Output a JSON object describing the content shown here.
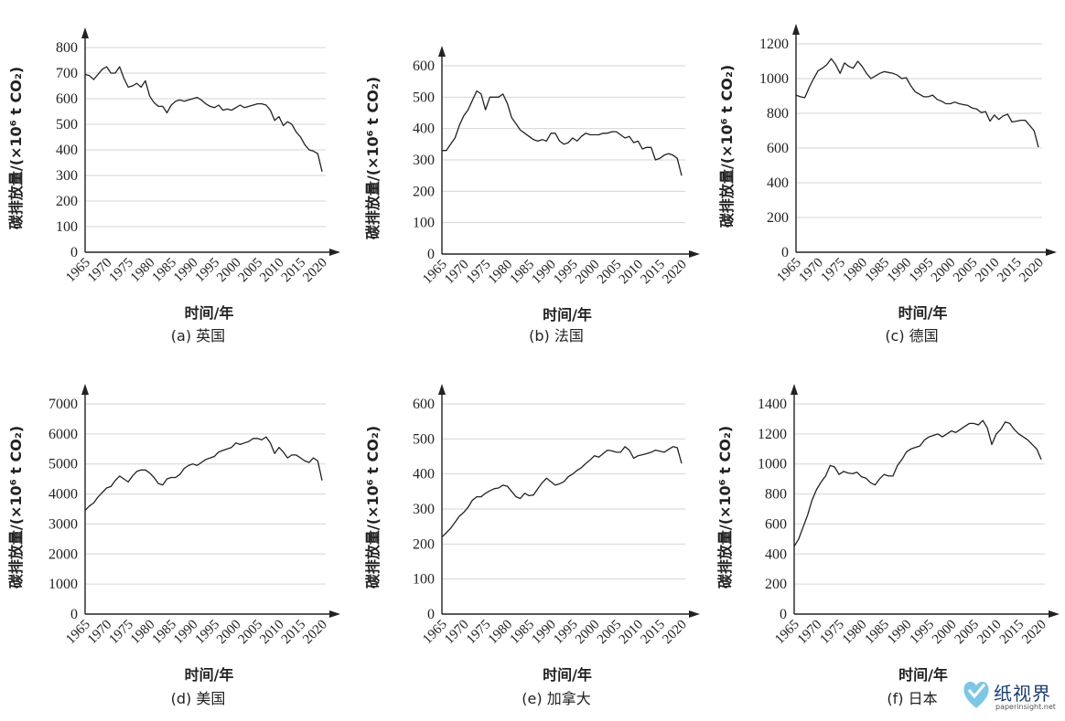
{
  "chart_data": [
    {
      "type": "line",
      "caption": "(a) 英国",
      "xlabel": "时间/年",
      "ylabel": "碳排放量/(×10⁶ t CO₂)",
      "ylim": [
        0,
        800
      ],
      "yticks": [
        0,
        100,
        200,
        300,
        400,
        500,
        600,
        700,
        800
      ],
      "xticks": [
        1965,
        1970,
        1975,
        1980,
        1985,
        1990,
        1995,
        2000,
        2005,
        2010,
        2015,
        2020
      ],
      "x": [
        1965,
        1966,
        1967,
        1968,
        1969,
        1970,
        1971,
        1972,
        1973,
        1974,
        1975,
        1976,
        1977,
        1978,
        1979,
        1980,
        1981,
        1982,
        1983,
        1984,
        1985,
        1986,
        1987,
        1988,
        1989,
        1990,
        1991,
        1992,
        1993,
        1994,
        1995,
        1996,
        1997,
        1998,
        1999,
        2000,
        2001,
        2002,
        2003,
        2004,
        2005,
        2006,
        2007,
        2008,
        2009,
        2010,
        2011,
        2012,
        2013,
        2014,
        2015,
        2016,
        2017,
        2018,
        2019,
        2020
      ],
      "values": [
        695,
        690,
        675,
        695,
        715,
        725,
        700,
        700,
        725,
        680,
        645,
        650,
        660,
        645,
        670,
        610,
        585,
        570,
        570,
        545,
        575,
        590,
        595,
        590,
        595,
        600,
        605,
        595,
        580,
        570,
        565,
        575,
        555,
        560,
        555,
        565,
        575,
        565,
        570,
        575,
        580,
        580,
        575,
        555,
        515,
        530,
        495,
        510,
        500,
        470,
        450,
        420,
        400,
        395,
        385,
        315
      ]
    },
    {
      "type": "line",
      "caption": "(b) 法国",
      "xlabel": "时间/年",
      "ylabel": "碳排放量/(×10⁶ t CO₂)",
      "ylim": [
        0,
        600
      ],
      "yticks": [
        0,
        100,
        200,
        300,
        400,
        500,
        600
      ],
      "xticks": [
        1965,
        1970,
        1975,
        1980,
        1985,
        1990,
        1995,
        2000,
        2005,
        2010,
        2015,
        2020
      ],
      "x": [
        1965,
        1966,
        1967,
        1968,
        1969,
        1970,
        1971,
        1972,
        1973,
        1974,
        1975,
        1976,
        1977,
        1978,
        1979,
        1980,
        1981,
        1982,
        1983,
        1984,
        1985,
        1986,
        1987,
        1988,
        1989,
        1990,
        1991,
        1992,
        1993,
        1994,
        1995,
        1996,
        1997,
        1998,
        1999,
        2000,
        2001,
        2002,
        2003,
        2004,
        2005,
        2006,
        2007,
        2008,
        2009,
        2010,
        2011,
        2012,
        2013,
        2014,
        2015,
        2016,
        2017,
        2018,
        2019,
        2020
      ],
      "values": [
        330,
        330,
        350,
        370,
        410,
        440,
        460,
        490,
        520,
        510,
        460,
        500,
        500,
        500,
        510,
        480,
        435,
        415,
        395,
        385,
        375,
        365,
        360,
        365,
        360,
        385,
        385,
        360,
        350,
        355,
        370,
        360,
        375,
        385,
        380,
        380,
        380,
        385,
        385,
        390,
        390,
        380,
        370,
        375,
        355,
        360,
        335,
        340,
        340,
        300,
        305,
        315,
        320,
        315,
        305,
        250
      ]
    },
    {
      "type": "line",
      "caption": "(c) 德国",
      "xlabel": "时间/年",
      "ylabel": "碳排放量/(×10⁶ t CO₂)",
      "ylim": [
        0,
        1200
      ],
      "yticks": [
        0,
        200,
        400,
        600,
        800,
        1000,
        1200
      ],
      "xticks": [
        1965,
        1970,
        1975,
        1980,
        1985,
        1990,
        1995,
        2000,
        2005,
        2010,
        2015,
        2020
      ],
      "x": [
        1965,
        1966,
        1967,
        1968,
        1969,
        1970,
        1971,
        1972,
        1973,
        1974,
        1975,
        1976,
        1977,
        1978,
        1979,
        1980,
        1981,
        1982,
        1983,
        1984,
        1985,
        1986,
        1987,
        1988,
        1989,
        1990,
        1991,
        1992,
        1993,
        1994,
        1995,
        1996,
        1997,
        1998,
        1999,
        2000,
        2001,
        2002,
        2003,
        2004,
        2005,
        2006,
        2007,
        2008,
        2009,
        2010,
        2011,
        2012,
        2013,
        2014,
        2015,
        2016,
        2017,
        2018,
        2019,
        2020
      ],
      "values": [
        905,
        895,
        890,
        950,
        1000,
        1045,
        1060,
        1080,
        1115,
        1080,
        1030,
        1090,
        1070,
        1060,
        1100,
        1070,
        1030,
        1000,
        1015,
        1030,
        1040,
        1035,
        1030,
        1020,
        1000,
        1005,
        960,
        925,
        910,
        895,
        895,
        905,
        880,
        870,
        855,
        855,
        865,
        855,
        850,
        845,
        830,
        825,
        805,
        810,
        755,
        790,
        765,
        785,
        795,
        750,
        755,
        760,
        760,
        730,
        700,
        605
      ]
    },
    {
      "type": "line",
      "caption": "(d) 美国",
      "xlabel": "时间/年",
      "ylabel": "碳排放量/(×10⁶ t CO₂)",
      "ylim": [
        0,
        7000
      ],
      "yticks": [
        0,
        1000,
        2000,
        3000,
        4000,
        5000,
        6000,
        7000
      ],
      "xticks": [
        1965,
        1970,
        1975,
        1980,
        1985,
        1990,
        1995,
        2000,
        2005,
        2010,
        2015,
        2020
      ],
      "x": [
        1965,
        1966,
        1967,
        1968,
        1969,
        1970,
        1971,
        1972,
        1973,
        1974,
        1975,
        1976,
        1977,
        1978,
        1979,
        1980,
        1981,
        1982,
        1983,
        1984,
        1985,
        1986,
        1987,
        1988,
        1989,
        1990,
        1991,
        1992,
        1993,
        1994,
        1995,
        1996,
        1997,
        1998,
        1999,
        2000,
        2001,
        2002,
        2003,
        2004,
        2005,
        2006,
        2007,
        2008,
        2009,
        2010,
        2011,
        2012,
        2013,
        2014,
        2015,
        2016,
        2017,
        2018,
        2019,
        2020
      ],
      "values": [
        3450,
        3600,
        3700,
        3900,
        4050,
        4200,
        4250,
        4450,
        4600,
        4500,
        4400,
        4600,
        4750,
        4800,
        4800,
        4700,
        4550,
        4350,
        4300,
        4500,
        4550,
        4550,
        4650,
        4850,
        4950,
        5000,
        4950,
        5050,
        5150,
        5200,
        5250,
        5400,
        5450,
        5500,
        5550,
        5700,
        5650,
        5700,
        5750,
        5850,
        5850,
        5800,
        5900,
        5700,
        5350,
        5550,
        5400,
        5200,
        5300,
        5300,
        5200,
        5100,
        5050,
        5200,
        5100,
        4450
      ]
    },
    {
      "type": "line",
      "caption": "(e) 加拿大",
      "xlabel": "时间/年",
      "ylabel": "碳排放量/(×10⁶ t CO₂)",
      "ylim": [
        0,
        600
      ],
      "yticks": [
        0,
        100,
        200,
        300,
        400,
        500,
        600
      ],
      "xticks": [
        1965,
        1970,
        1975,
        1980,
        1985,
        1990,
        1995,
        2000,
        2005,
        2010,
        2015,
        2020
      ],
      "x": [
        1965,
        1966,
        1967,
        1968,
        1969,
        1970,
        1971,
        1972,
        1973,
        1974,
        1975,
        1976,
        1977,
        1978,
        1979,
        1980,
        1981,
        1982,
        1983,
        1984,
        1985,
        1986,
        1987,
        1988,
        1989,
        1990,
        1991,
        1992,
        1993,
        1994,
        1995,
        1996,
        1997,
        1998,
        1999,
        2000,
        2001,
        2002,
        2003,
        2004,
        2005,
        2006,
        2007,
        2008,
        2009,
        2010,
        2011,
        2012,
        2013,
        2014,
        2015,
        2016,
        2017,
        2018,
        2019,
        2020
      ],
      "values": [
        220,
        232,
        245,
        262,
        280,
        290,
        305,
        325,
        335,
        335,
        345,
        352,
        358,
        360,
        368,
        365,
        350,
        335,
        330,
        345,
        338,
        340,
        358,
        375,
        388,
        378,
        368,
        372,
        378,
        392,
        400,
        410,
        418,
        430,
        440,
        452,
        448,
        458,
        468,
        466,
        462,
        462,
        478,
        468,
        445,
        452,
        455,
        458,
        462,
        468,
        465,
        462,
        470,
        478,
        475,
        430
      ]
    },
    {
      "type": "line",
      "caption": "(f) 日本",
      "xlabel": "时间/年",
      "ylabel": "碳排放量/(×10⁶ t CO₂)",
      "ylim": [
        0,
        1400
      ],
      "yticks": [
        0,
        200,
        400,
        600,
        800,
        1000,
        1200,
        1400
      ],
      "xticks": [
        1965,
        1970,
        1975,
        1980,
        1985,
        1990,
        1995,
        2000,
        2005,
        2010,
        2015,
        2020
      ],
      "x": [
        1965,
        1966,
        1967,
        1968,
        1969,
        1970,
        1971,
        1972,
        1973,
        1974,
        1975,
        1976,
        1977,
        1978,
        1979,
        1980,
        1981,
        1982,
        1983,
        1984,
        1985,
        1986,
        1987,
        1988,
        1989,
        1990,
        1991,
        1992,
        1993,
        1994,
        1995,
        1996,
        1997,
        1998,
        1999,
        2000,
        2001,
        2002,
        2003,
        2004,
        2005,
        2006,
        2007,
        2008,
        2009,
        2010,
        2011,
        2012,
        2013,
        2014,
        2015,
        2016,
        2017,
        2018,
        2019,
        2020
      ],
      "values": [
        450,
        500,
        580,
        660,
        760,
        830,
        880,
        920,
        990,
        980,
        930,
        950,
        940,
        935,
        945,
        915,
        905,
        875,
        860,
        900,
        930,
        920,
        920,
        990,
        1030,
        1080,
        1100,
        1110,
        1120,
        1160,
        1180,
        1190,
        1200,
        1180,
        1200,
        1220,
        1210,
        1230,
        1250,
        1270,
        1270,
        1260,
        1290,
        1240,
        1130,
        1200,
        1230,
        1280,
        1270,
        1230,
        1200,
        1180,
        1160,
        1130,
        1100,
        1030
      ]
    }
  ],
  "watermark": {
    "text": "纸视界",
    "sub": "paperinsight.net"
  }
}
